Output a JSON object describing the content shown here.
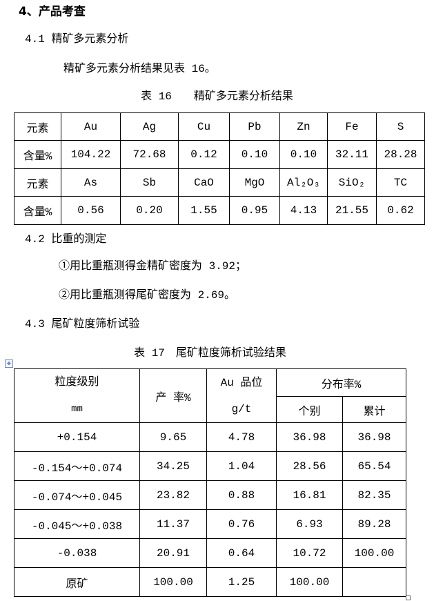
{
  "section_title": "4、产品考查",
  "sub1": "4.1 精矿多元素分析",
  "para1": "精矿多元素分析结果见表 16。",
  "table16": {
    "caption": "表 16　　精矿多元素分析结果",
    "rows": [
      [
        "元素",
        "Au",
        "Ag",
        "Cu",
        "Pb",
        "Zn",
        "Fe",
        "S"
      ],
      [
        "含量%",
        "104.22",
        "72.68",
        "0.12",
        "0.10",
        "0.10",
        "32.11",
        "28.28"
      ],
      [
        "元素",
        "As",
        "Sb",
        "CaO",
        "MgO",
        "Al₂O₃",
        "SiO₂",
        "TC"
      ],
      [
        "含量%",
        "0.56",
        "0.20",
        "1.55",
        "0.95",
        "4.13",
        "21.55",
        "0.62"
      ]
    ]
  },
  "sub2": "4.2 比重的测定",
  "item1": "①用比重瓶测得金精矿密度为 3.92；",
  "item2": "②用比重瓶测得尾矿密度为 2.69。",
  "sub3": "4.3 尾矿粒度筛析试验",
  "table17": {
    "caption": "表 17　尾矿粒度筛析试验结果",
    "header": {
      "size_class": "粒度级别",
      "size_unit": "mm",
      "yield": "产 率%",
      "au_grade": "Au 品位",
      "au_unit": "g/t",
      "distribution": "分布率%",
      "individual": "个别",
      "cumulative": "累计"
    },
    "rows": [
      [
        "+0.154",
        "9.65",
        "4.78",
        "36.98",
        "36.98"
      ],
      [
        "-0.154～+0.074",
        "34.25",
        "1.04",
        "28.56",
        "65.54"
      ],
      [
        "-0.074～+0.045",
        "23.82",
        "0.88",
        "16.81",
        "82.35"
      ],
      [
        "-0.045～+0.038",
        "11.37",
        "0.76",
        "6.93",
        "89.28"
      ],
      [
        "-0.038",
        "20.91",
        "0.64",
        "10.72",
        "100.00"
      ],
      [
        "原矿",
        "100.00",
        "1.25",
        "100.00",
        ""
      ]
    ]
  }
}
